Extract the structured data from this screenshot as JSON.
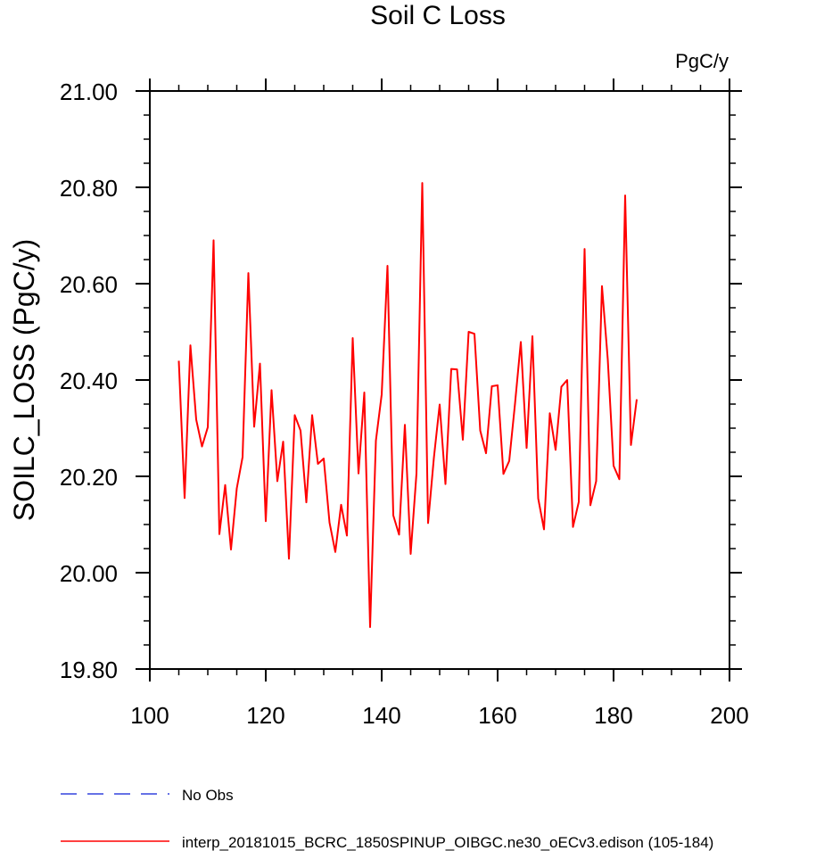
{
  "chart_data": {
    "type": "line",
    "title": "Soil C Loss",
    "units_label": "PgC/y",
    "ylabel": "SOILC_LOSS  (PgC/y)",
    "xlabel": "",
    "xlim": [
      100,
      200
    ],
    "ylim": [
      19.8,
      21.0
    ],
    "x_ticks": [
      100,
      120,
      140,
      160,
      180,
      200
    ],
    "y_ticks": [
      19.8,
      20.0,
      20.2,
      20.4,
      20.6,
      20.8,
      21.0
    ],
    "x_tick_labels": [
      "100",
      "120",
      "140",
      "160",
      "180",
      "200"
    ],
    "y_tick_labels": [
      "19.80",
      "20.00",
      "20.20",
      "20.40",
      "20.60",
      "20.80",
      "21.00"
    ],
    "grid": false,
    "legend_placement": "bottom",
    "series": [
      {
        "name": "No Obs",
        "color": "#3344dd",
        "style": "dashed",
        "x": [],
        "y": []
      },
      {
        "name": "interp_20181015_BCRC_1850SPINUP_OIBGC.ne30_oECv3.edison (105-184)",
        "color": "#ff0000",
        "style": "solid",
        "x": [
          105,
          106,
          107,
          108,
          109,
          110,
          111,
          112,
          113,
          114,
          115,
          116,
          117,
          118,
          119,
          120,
          121,
          122,
          123,
          124,
          125,
          126,
          127,
          128,
          129,
          130,
          131,
          132,
          133,
          134,
          135,
          136,
          137,
          138,
          139,
          140,
          141,
          142,
          143,
          144,
          145,
          146,
          147,
          148,
          149,
          150,
          151,
          152,
          153,
          154,
          155,
          156,
          157,
          158,
          159,
          160,
          161,
          162,
          163,
          164,
          165,
          166,
          167,
          168,
          169,
          170,
          171,
          172,
          173,
          174,
          175,
          176,
          177,
          178,
          179,
          180,
          181,
          182,
          183,
          184
        ],
        "y": [
          20.44,
          20.155,
          20.472,
          20.318,
          20.262,
          20.302,
          20.69,
          20.08,
          20.182,
          20.048,
          20.175,
          20.24,
          20.622,
          20.303,
          20.434,
          20.107,
          20.379,
          20.19,
          20.272,
          20.029,
          20.327,
          20.295,
          20.146,
          20.327,
          20.226,
          20.237,
          20.104,
          20.043,
          20.141,
          20.077,
          20.487,
          20.206,
          20.374,
          19.887,
          20.274,
          20.37,
          20.637,
          20.119,
          20.079,
          20.307,
          20.039,
          20.206,
          20.809,
          20.103,
          20.238,
          20.349,
          20.184,
          20.423,
          20.422,
          20.276,
          20.5,
          20.496,
          20.295,
          20.248,
          20.387,
          20.389,
          20.205,
          20.232,
          20.351,
          20.479,
          20.259,
          20.491,
          20.154,
          20.09,
          20.331,
          20.255,
          20.386,
          20.4,
          20.095,
          20.147,
          20.672,
          20.14,
          20.19,
          20.595,
          20.443,
          20.222,
          20.194,
          20.783,
          20.265,
          20.36
        ]
      }
    ]
  }
}
